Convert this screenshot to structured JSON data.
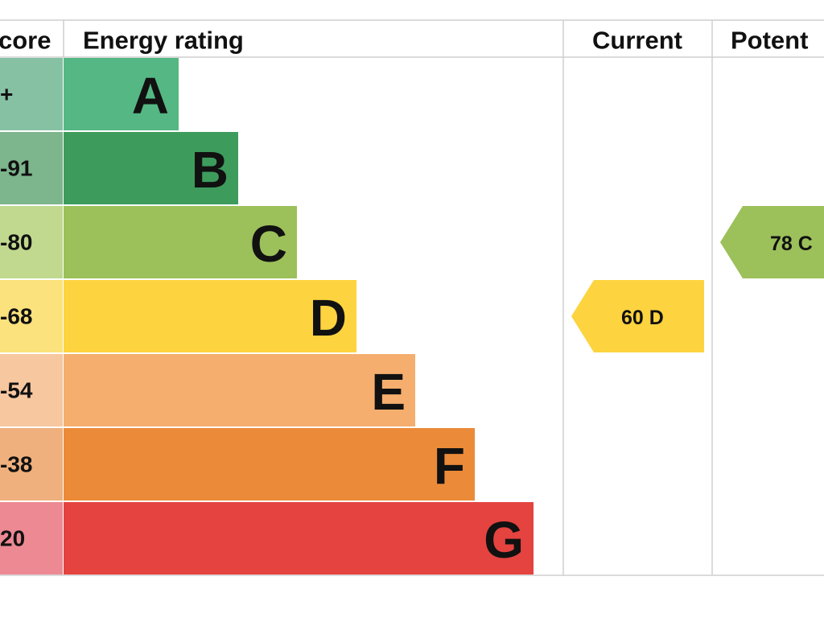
{
  "header": {
    "score": "core",
    "rating": "Energy rating",
    "current": "Current",
    "potential": "Potent"
  },
  "rows": [
    {
      "score": "+",
      "letter": "A",
      "color": "#55b784",
      "light": "#86c1a4"
    },
    {
      "score": "-91",
      "letter": "B",
      "color": "#3d9c5c",
      "light": "#7db58d"
    },
    {
      "score": "-80",
      "letter": "C",
      "color": "#9cc05a",
      "light": "#c1d98f"
    },
    {
      "score": "-68",
      "letter": "D",
      "color": "#fdd33f",
      "light": "#fbe27c"
    },
    {
      "score": "-54",
      "letter": "E",
      "color": "#f5ae6e",
      "light": "#f7c7a0"
    },
    {
      "score": "-38",
      "letter": "F",
      "color": "#eb8a38",
      "light": "#efb07d"
    },
    {
      "score": "20",
      "letter": "G",
      "color": "#e4433f",
      "light": "#ec8993"
    }
  ],
  "current": {
    "label": "60  D",
    "color": "#fdd33f"
  },
  "potential": {
    "label": "78  C",
    "color": "#9cc05a"
  }
}
